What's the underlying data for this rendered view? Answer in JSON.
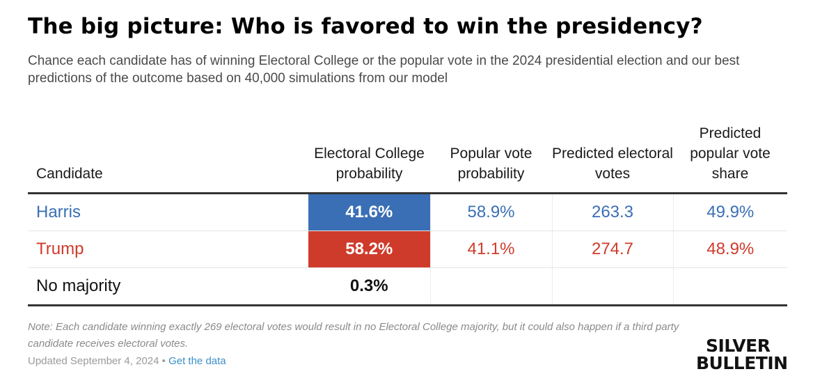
{
  "colors": {
    "harris": "#3a6fb5",
    "trump": "#cf3b2b",
    "neutral": "#111111",
    "link": "#3a8fc7"
  },
  "chart_data": {
    "type": "table",
    "title": "The big picture: Who is favored to win the presidency?",
    "subtitle": "Chance each candidate has of winning Electoral College or the popular vote in the 2024 presidential election and our best predictions of the outcome based on 40,000 simulations from our model",
    "columns": [
      "Candidate",
      "Electoral College probability",
      "Popular vote probability",
      "Predicted electoral votes",
      "Predicted popular vote share"
    ],
    "rows": [
      {
        "candidate": "Harris",
        "color": "#3a6fb5",
        "ec_prob": "41.6%",
        "pv_prob": "58.9%",
        "ev": "263.3",
        "pv_share": "49.9%"
      },
      {
        "candidate": "Trump",
        "color": "#cf3b2b",
        "ec_prob": "58.2%",
        "pv_prob": "41.1%",
        "ev": "274.7",
        "pv_share": "48.9%"
      },
      {
        "candidate": "No majority",
        "color": "#111111",
        "ec_prob": "0.3%",
        "pv_prob": "",
        "ev": "",
        "pv_share": ""
      }
    ],
    "note": "Note: Each candidate winning exactly 269 electoral votes would result in no Electoral College majority, but it could also happen if a third party candidate receives electoral votes.",
    "updated": "Updated September 4, 2024",
    "separator": "•",
    "link_text": "Get the data"
  },
  "logo": {
    "line1": "SILVER",
    "line2": "BULLETIN"
  }
}
